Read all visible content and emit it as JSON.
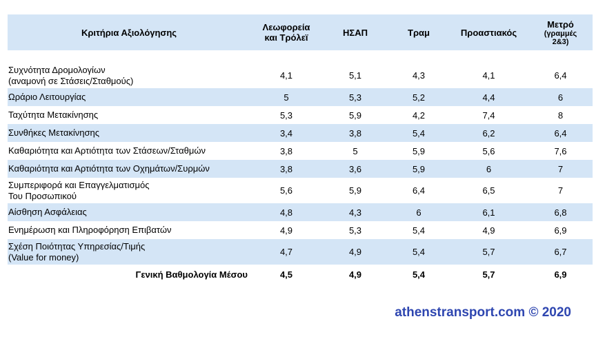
{
  "table": {
    "headers": {
      "criteria": "Κριτήρια Αξιολόγησης",
      "bus_line1": "Λεωφορεία",
      "bus_line2": "και Τρόλεϊ",
      "isap": "ΗΣΑΠ",
      "tram": "Τραμ",
      "suburban": "Προαστιακός",
      "metro_line1": "Μετρό",
      "metro_line2": "(γραμμές",
      "metro_line3": "2&3)"
    },
    "rows": [
      {
        "label1": "Συχνότητα Δρομολογίων",
        "label2": "(αναμονή σε Στάσεις/Σταθμούς)",
        "bus": "4,1",
        "isap": "5,1",
        "tram": "4,3",
        "suburban": "4,1",
        "metro": "6,4"
      },
      {
        "label1": "Ωράριο Λειτουργίας",
        "label2": "",
        "bus": "5",
        "isap": "5,3",
        "tram": "5,2",
        "suburban": "4,4",
        "metro": "6"
      },
      {
        "label1": "Ταχύτητα Μετακίνησης",
        "label2": "",
        "bus": "5,3",
        "isap": "5,9",
        "tram": "4,2",
        "suburban": "7,4",
        "metro": "8"
      },
      {
        "label1": "Συνθήκες Μετακίνησης",
        "label2": "",
        "bus": "3,4",
        "isap": "3,8",
        "tram": "5,4",
        "suburban": "6,2",
        "metro": "6,4"
      },
      {
        "label1": "Καθαριότητα και Αρτιότητα των Στάσεων/Σταθμών",
        "label2": "",
        "bus": "3,8",
        "isap": "5",
        "tram": "5,9",
        "suburban": "5,6",
        "metro": "7,6"
      },
      {
        "label1": "Καθαριότητα και Αρτιότητα των Οχημάτων/Συρμών",
        "label2": "",
        "bus": "3,8",
        "isap": "3,6",
        "tram": "5,9",
        "suburban": "6",
        "metro": "7"
      },
      {
        "label1": "Συμπεριφορά και Επαγγελματισμός",
        "label2": "Του Προσωπικού",
        "bus": "5,6",
        "isap": "5,9",
        "tram": "6,4",
        "suburban": "6,5",
        "metro": "7"
      },
      {
        "label1": "Αίσθηση Ασφάλειας",
        "label2": "",
        "bus": "4,8",
        "isap": "4,3",
        "tram": "6",
        "suburban": "6,1",
        "metro": "6,8"
      },
      {
        "label1": "Ενημέρωση και Πληροφόρηση Επιβατών",
        "label2": "",
        "bus": "4,9",
        "isap": "5,3",
        "tram": "5,4",
        "suburban": "4,9",
        "metro": "6,9"
      },
      {
        "label1": "Σχέση Ποιότητας Υπηρεσίας/Τιμής",
        "label2": "(Value for money)",
        "bus": "4,7",
        "isap": "4,9",
        "tram": "5,4",
        "suburban": "5,7",
        "metro": "6,7"
      }
    ],
    "total": {
      "label": "Γενική Βαθμολογία Μέσου",
      "bus": "4,5",
      "isap": "4,9",
      "tram": "5,4",
      "suburban": "5,7",
      "metro": "6,9"
    }
  },
  "footer": {
    "credit": "athenstransport.com © 2020"
  },
  "colors": {
    "row_highlight": "#d4e5f6",
    "footer_text": "#2e46b0"
  }
}
